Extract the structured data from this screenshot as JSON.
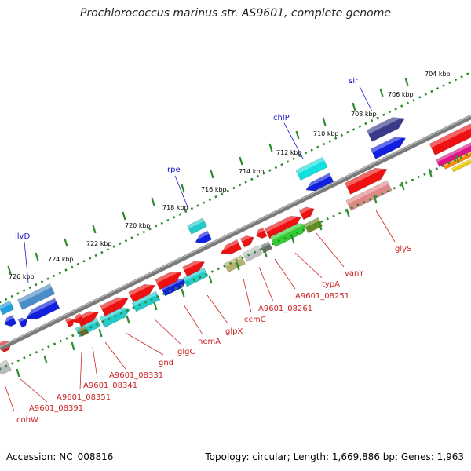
{
  "title": "Prochlorococcus marinus str. AS9601, complete genome",
  "footer": {
    "accession": "Accession: NC_008816",
    "topology": "Topology: circular; Length: 1,669,886 bp; Genes: 1,963"
  },
  "colors": {
    "backbone": "#808080",
    "ticks": "#2e8b2e",
    "upper_label": "#1a1acc",
    "lower_label": "#cc2222"
  },
  "scale": {
    "labels": [
      {
        "text": "704 kbp"
      },
      {
        "text": "706 kbp"
      },
      {
        "text": "708 kbp"
      },
      {
        "text": "710 kbp"
      },
      {
        "text": "712 kbp"
      },
      {
        "text": "714 kbp"
      },
      {
        "text": "716 kbp"
      },
      {
        "text": "718 kbp"
      },
      {
        "text": "720 kbp"
      },
      {
        "text": "722 kbp"
      },
      {
        "text": "724 kbp"
      },
      {
        "text": "726 kbp"
      }
    ]
  },
  "upper_labels": [
    {
      "text": "sir"
    },
    {
      "text": "chlP"
    },
    {
      "text": "rpe"
    },
    {
      "text": "ilvD"
    }
  ],
  "lower_labels": [
    {
      "text": "glyS"
    },
    {
      "text": "vanY"
    },
    {
      "text": "typA"
    },
    {
      "text": "A9601_08251"
    },
    {
      "text": "A9601_08261"
    },
    {
      "text": "ccmC"
    },
    {
      "text": "glpX"
    },
    {
      "text": "hemA"
    },
    {
      "text": "glgC"
    },
    {
      "text": "gnd"
    },
    {
      "text": "A9601_08331"
    },
    {
      "text": "A9601_08341"
    },
    {
      "text": "A9601_08351"
    },
    {
      "text": "A9601_08391"
    },
    {
      "text": "cobW"
    }
  ]
}
